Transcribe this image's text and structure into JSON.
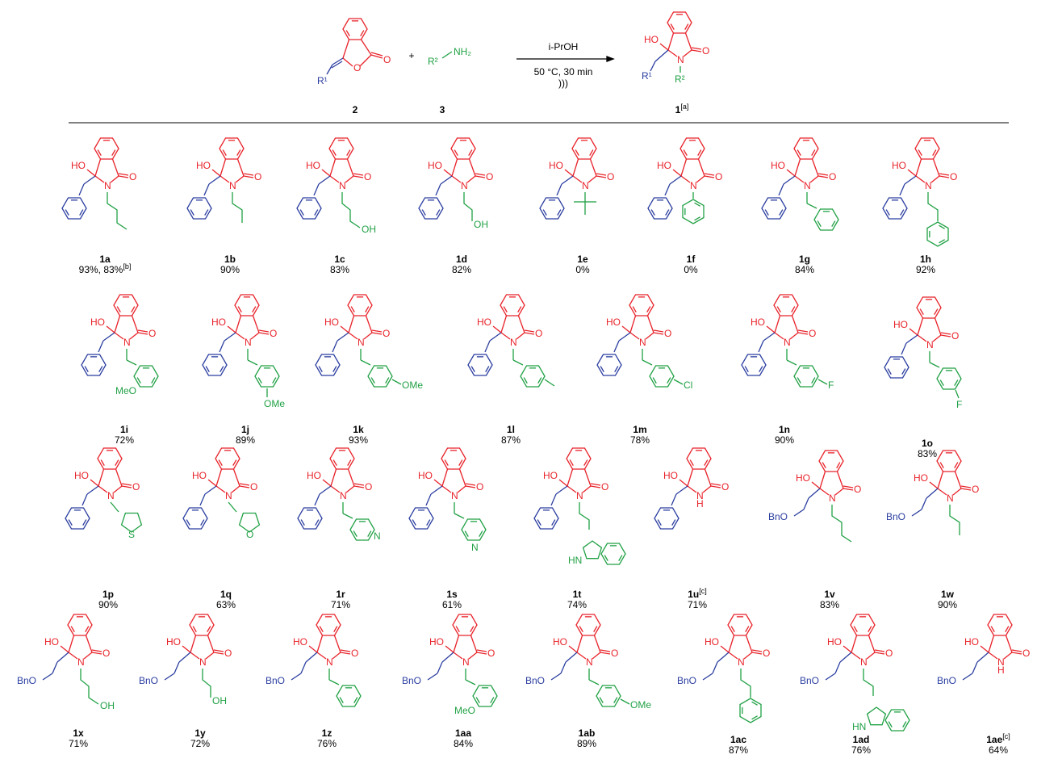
{
  "reaction": {
    "plus1": "+",
    "reagent": "R²",
    "reagent_nh2": "NH₂",
    "reagent_label": "3",
    "start_label": "2",
    "start_r1": "R¹",
    "solvent": "i-PrOH",
    "conditions": "50 °C, 30 min",
    "ultrasound": ")))",
    "product_label": "1",
    "product_label_sup": "[a]",
    "product_r1": "R¹",
    "product_r2": "R²",
    "ho": "HO",
    "n": "N",
    "o": "O"
  },
  "compounds": [
    {
      "id": "1a",
      "yield": "93%, 83%",
      "sup": "[b]"
    },
    {
      "id": "1b",
      "yield": "90%"
    },
    {
      "id": "1c",
      "yield": "83%"
    },
    {
      "id": "1d",
      "yield": "82%"
    },
    {
      "id": "1e",
      "yield": "0%"
    },
    {
      "id": "1f",
      "yield": "0%"
    },
    {
      "id": "1g",
      "yield": "84%"
    },
    {
      "id": "1h",
      "yield": "92%"
    },
    {
      "id": "1i",
      "yield": "72%"
    },
    {
      "id": "1j",
      "yield": "89%"
    },
    {
      "id": "1k",
      "yield": "93%"
    },
    {
      "id": "1l",
      "yield": "87%"
    },
    {
      "id": "1m",
      "yield": "78%"
    },
    {
      "id": "1n",
      "yield": "90%"
    },
    {
      "id": "1o",
      "yield": "83%"
    },
    {
      "id": "1p",
      "yield": "90%"
    },
    {
      "id": "1q",
      "yield": "63%"
    },
    {
      "id": "1r",
      "yield": "71%"
    },
    {
      "id": "1s",
      "yield": "61%"
    },
    {
      "id": "1t",
      "yield": "74%"
    },
    {
      "id": "1u",
      "yield": "71%",
      "sup": "[c]"
    },
    {
      "id": "1v",
      "yield": "83%"
    },
    {
      "id": "1w",
      "yield": "90%"
    },
    {
      "id": "1x",
      "yield": "71%"
    },
    {
      "id": "1y",
      "yield": "72%"
    },
    {
      "id": "1z",
      "yield": "76%"
    },
    {
      "id": "1aa",
      "yield": "84%"
    },
    {
      "id": "1ab",
      "yield": "89%"
    },
    {
      "id": "1ac",
      "yield": "87%"
    },
    {
      "id": "1ad",
      "yield": "76%"
    },
    {
      "id": "1ae",
      "yield": "64%",
      "sup": "[c]"
    }
  ],
  "substituents": {
    "1c": "OH",
    "1d": "OH",
    "1i": "MeO",
    "1j": "OMe",
    "1k": "OMe",
    "1m": "Cl",
    "1n": "F",
    "1o": "F",
    "1p": "S",
    "1q": "O",
    "1r": "N",
    "1s": "N",
    "1t": "HN",
    "1u": "H",
    "1x": "OH",
    "1y": "OH",
    "1aa": "MeO",
    "1ab": "OMe",
    "1ad": "HN",
    "1ae": "H",
    "bno": "BnO"
  },
  "colors": {
    "core": "#e8232a",
    "r1": "#2b3ea0",
    "r2": "#21a145",
    "text": "#000000"
  }
}
